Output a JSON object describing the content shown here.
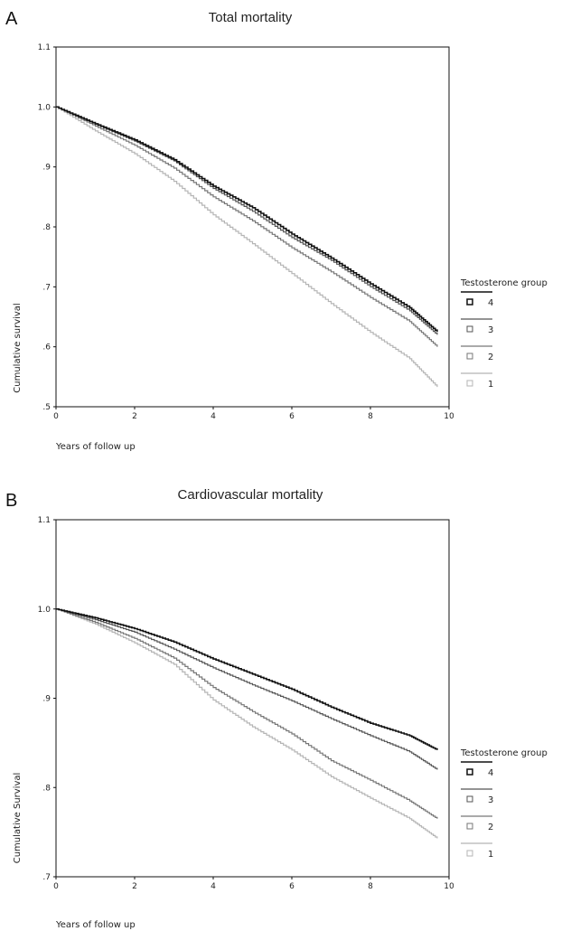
{
  "chart_data": [
    {
      "panel": "A",
      "type": "line",
      "step": true,
      "title": "Total mortality",
      "xlabel": "Years of follow up",
      "ylabel": "Cumulative survival",
      "xlim": [
        0,
        10
      ],
      "ylim": [
        0.5,
        1.1
      ],
      "x_ticks": [
        0,
        2,
        4,
        6,
        8,
        10
      ],
      "x_tick_labels": [
        "0",
        "2",
        "4",
        "6",
        "8",
        "10"
      ],
      "y_ticks": [
        0.5,
        0.6,
        0.7,
        0.8,
        0.9,
        1.0,
        1.1
      ],
      "y_tick_labels": [
        ".5",
        ".6",
        ".7",
        ".8",
        ".9",
        "1.0",
        "1.1"
      ],
      "legend": {
        "title": "Testosterone group",
        "placement": "right"
      },
      "x": [
        0,
        1,
        2,
        3,
        4,
        5,
        6,
        7,
        8,
        9,
        9.7
      ],
      "series": [
        {
          "name": "4",
          "color": "#111111",
          "values": [
            1.0,
            0.972,
            0.945,
            0.912,
            0.868,
            0.832,
            0.788,
            0.748,
            0.705,
            0.665,
            0.625
          ]
        },
        {
          "name": "3",
          "color": "#555555",
          "values": [
            1.0,
            0.971,
            0.943,
            0.91,
            0.864,
            0.826,
            0.782,
            0.744,
            0.7,
            0.66,
            0.62
          ]
        },
        {
          "name": "2",
          "color": "#777777",
          "values": [
            1.0,
            0.968,
            0.936,
            0.898,
            0.85,
            0.81,
            0.765,
            0.725,
            0.682,
            0.642,
            0.6
          ]
        },
        {
          "name": "1",
          "color": "#b5b5b5",
          "values": [
            1.0,
            0.96,
            0.922,
            0.876,
            0.82,
            0.772,
            0.722,
            0.672,
            0.624,
            0.58,
            0.533
          ]
        }
      ]
    },
    {
      "panel": "B",
      "type": "line",
      "step": true,
      "title": "Cardiovascular mortality",
      "xlabel": "Years of follow up",
      "ylabel": "Cumulative Survival",
      "xlim": [
        0,
        10
      ],
      "ylim": [
        0.7,
        1.1
      ],
      "x_ticks": [
        0,
        2,
        4,
        6,
        8,
        10
      ],
      "x_tick_labels": [
        "0",
        "2",
        "4",
        "6",
        "8",
        "10"
      ],
      "y_ticks": [
        0.7,
        0.8,
        0.9,
        1.0,
        1.1
      ],
      "y_tick_labels": [
        ".7",
        ".8",
        ".9",
        "1.0",
        "1.1"
      ],
      "legend": {
        "title": "Testosterone group",
        "placement": "right"
      },
      "x": [
        0,
        1,
        2,
        3,
        4,
        5,
        6,
        7,
        8,
        9,
        9.7
      ],
      "series": [
        {
          "name": "4",
          "color": "#111111",
          "values": [
            1.0,
            0.99,
            0.978,
            0.963,
            0.944,
            0.927,
            0.91,
            0.89,
            0.872,
            0.858,
            0.842
          ]
        },
        {
          "name": "3",
          "color": "#555555",
          "values": [
            1.0,
            0.988,
            0.974,
            0.955,
            0.934,
            0.915,
            0.897,
            0.877,
            0.858,
            0.84,
            0.82
          ]
        },
        {
          "name": "2",
          "color": "#777777",
          "values": [
            1.0,
            0.985,
            0.967,
            0.945,
            0.912,
            0.885,
            0.86,
            0.83,
            0.808,
            0.785,
            0.765
          ]
        },
        {
          "name": "1",
          "color": "#b5b5b5",
          "values": [
            1.0,
            0.983,
            0.962,
            0.938,
            0.898,
            0.868,
            0.842,
            0.812,
            0.788,
            0.765,
            0.743
          ]
        }
      ]
    }
  ]
}
